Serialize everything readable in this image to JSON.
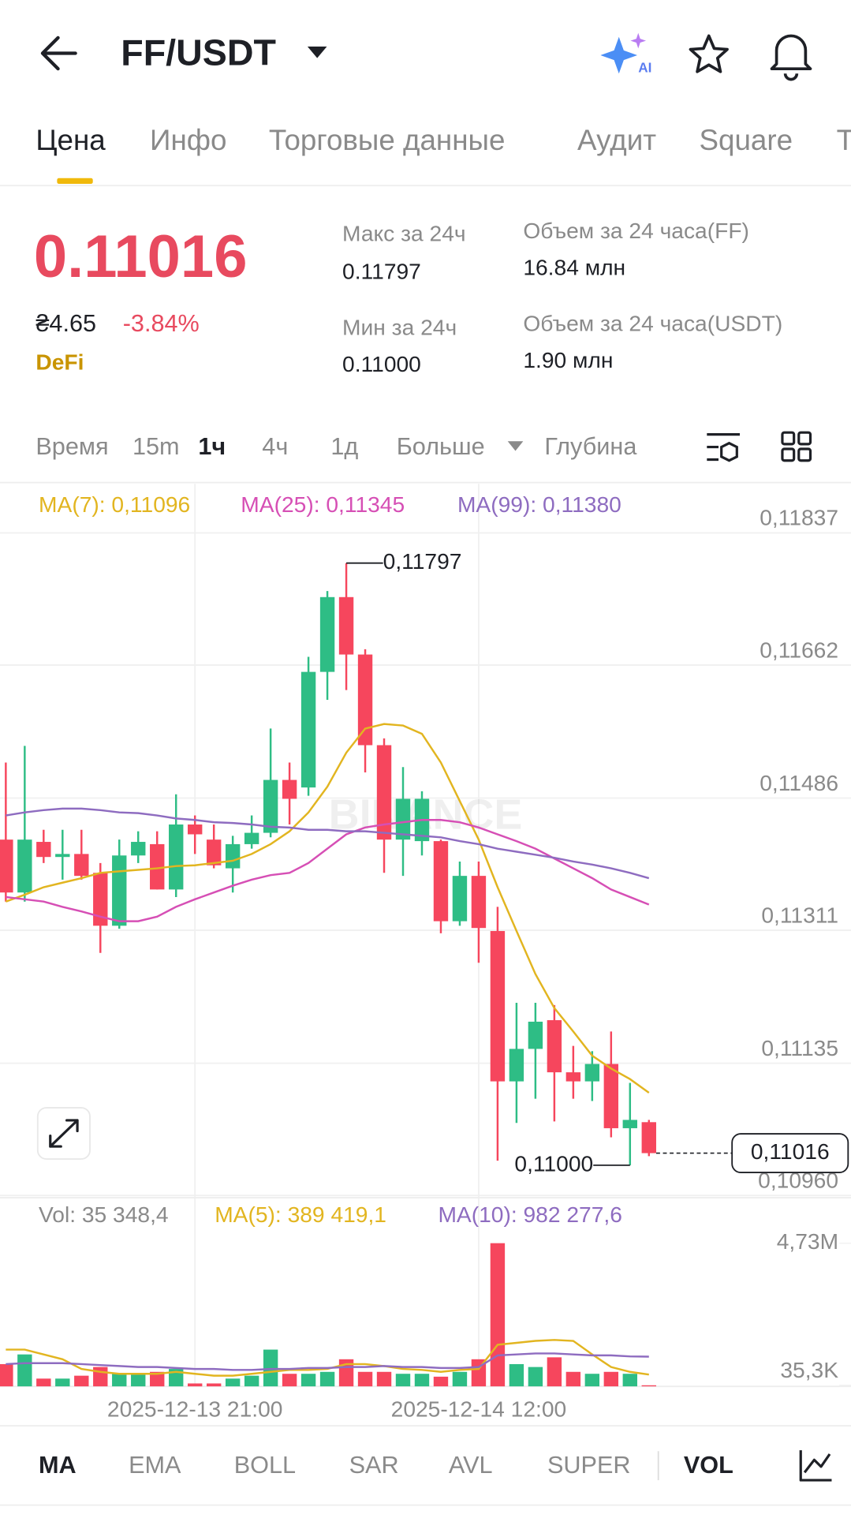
{
  "header": {
    "title": "FF/USDT"
  },
  "tabs": [
    "Цена",
    "Инфо",
    "Торговые данные",
    "Аудит",
    "Square",
    "Т"
  ],
  "price": {
    "last": "0.11016",
    "fiat": "₴4.65",
    "change": "-3.84%",
    "tag": "DeFi"
  },
  "stats": [
    {
      "label": "Макс за 24ч",
      "value": "0.11797"
    },
    {
      "label": "Мин за 24ч",
      "value": "0.11000"
    },
    {
      "label": "Объем за 24 часа(FF)",
      "value": "16.84 млн"
    },
    {
      "label": "Объем за 24 часа(USDT)",
      "value": "1.90 млн"
    }
  ],
  "intervals": [
    "Время",
    "15m",
    "1ч",
    "4ч",
    "1д",
    "Больше",
    "Глубина"
  ],
  "indicators": [
    "MA",
    "EMA",
    "BOLL",
    "SAR",
    "AVL",
    "SUPER",
    "VOL"
  ],
  "chart_data": {
    "type": "candlestick",
    "watermark": "BINANCE",
    "categories": [
      null,
      null,
      null,
      null,
      null,
      null,
      null,
      null,
      null,
      null,
      "2025-12-13 21:00",
      null,
      null,
      null,
      null,
      null,
      null,
      null,
      null,
      null,
      null,
      null,
      null,
      null,
      null,
      "2025-12-14 12:00",
      null,
      null,
      null,
      null,
      null,
      null,
      null,
      null,
      null
    ],
    "open": [
      0.11431,
      0.11361,
      0.11428,
      0.11408,
      0.11412,
      0.11387,
      0.11317,
      0.1141,
      0.11425,
      0.11365,
      0.11451,
      0.11431,
      0.11393,
      0.11425,
      0.1144,
      0.1151,
      0.115,
      0.11653,
      0.11752,
      0.11676,
      0.11556,
      0.11431,
      0.11429,
      0.11429,
      0.11323,
      0.11383,
      0.1131,
      0.11111,
      0.11154,
      0.11192,
      0.11123,
      0.11111,
      0.11134,
      0.11049,
      0.11057
    ],
    "high": [
      0.11533,
      0.11555,
      0.11444,
      0.11444,
      0.11444,
      0.114,
      0.11431,
      0.11442,
      0.11442,
      0.11491,
      0.11463,
      0.11451,
      0.11436,
      0.11463,
      0.11578,
      0.11533,
      0.11673,
      0.1176,
      0.11797,
      0.11683,
      0.11565,
      0.11527,
      0.11495,
      0.11431,
      0.11402,
      0.11402,
      0.11342,
      0.11215,
      0.11215,
      0.11212,
      0.11158,
      0.11151,
      0.11177,
      0.11109,
      0.1106
    ],
    "low": [
      0.11349,
      0.11349,
      0.114,
      0.11378,
      0.11378,
      0.11281,
      0.11313,
      0.114,
      0.11365,
      0.11355,
      0.11412,
      0.11393,
      0.11361,
      0.11419,
      0.11434,
      0.11451,
      0.11489,
      0.11616,
      0.11629,
      0.1152,
      0.11387,
      0.11383,
      0.1141,
      0.11307,
      0.11317,
      0.11268,
      0.11006,
      0.11056,
      0.11088,
      0.11058,
      0.11088,
      0.11085,
      0.11037,
      0.11,
      0.11012
    ],
    "close": [
      0.11361,
      0.11431,
      0.11408,
      0.11412,
      0.11383,
      0.11317,
      0.1141,
      0.11428,
      0.11365,
      0.11451,
      0.11438,
      0.11397,
      0.11425,
      0.1144,
      0.1151,
      0.11485,
      0.11653,
      0.11752,
      0.11676,
      0.11556,
      0.11431,
      0.11485,
      0.11485,
      0.11323,
      0.11383,
      0.11314,
      0.11111,
      0.11154,
      0.1119,
      0.11123,
      0.11111,
      0.11134,
      0.11049,
      0.1106,
      0.11016
    ],
    "up_color": "#2ebd85",
    "down_color": "#f6465d",
    "lines": [
      {
        "name": "MA(7): 0,11096",
        "color": "#e2b520",
        "values": [
          0.11349,
          0.11358,
          0.11368,
          0.11374,
          0.1138,
          0.11387,
          0.11389,
          0.11391,
          0.11393,
          0.11396,
          0.11397,
          0.114,
          0.11403,
          0.11412,
          0.11425,
          0.11442,
          0.11467,
          0.11501,
          0.11546,
          0.11578,
          0.11584,
          0.11582,
          0.11571,
          0.11533,
          0.11482,
          0.11431,
          0.11368,
          0.1131,
          0.11253,
          0.11208,
          0.11177,
          0.11145,
          0.11128,
          0.11114,
          0.11096
        ]
      },
      {
        "name": "MA(25): 0,11345",
        "color": "#d64fb5",
        "values": [
          0.11355,
          0.11352,
          0.11349,
          0.11342,
          0.11336,
          0.11329,
          0.11323,
          0.11323,
          0.11329,
          0.11342,
          0.11352,
          0.11361,
          0.1137,
          0.11378,
          0.11384,
          0.11387,
          0.114,
          0.11419,
          0.11438,
          0.11447,
          0.11451,
          0.11454,
          0.11457,
          0.11457,
          0.11454,
          0.11447,
          0.11438,
          0.11429,
          0.11419,
          0.11406,
          0.11393,
          0.1138,
          0.11365,
          0.11355,
          0.11345
        ]
      },
      {
        "name": "MA(99): 0,11380",
        "color": "#8e6cc0",
        "values": [
          0.11463,
          0.11467,
          0.1147,
          0.11472,
          0.11472,
          0.1147,
          0.11467,
          0.11466,
          0.11463,
          0.11459,
          0.11457,
          0.11454,
          0.11453,
          0.11451,
          0.11448,
          0.11447,
          0.11444,
          0.11444,
          0.11442,
          0.11442,
          0.1144,
          0.11438,
          0.11436,
          0.11434,
          0.11429,
          0.11425,
          0.11419,
          0.11415,
          0.11411,
          0.11407,
          0.11402,
          0.11398,
          0.11393,
          0.11387,
          0.1138
        ]
      }
    ],
    "ylim": [
      0.10957,
      0.11902
    ],
    "yticks": [
      {
        "value": 0.11837,
        "label": "0,11837"
      },
      {
        "value": 0.11662,
        "label": "0,11662"
      },
      {
        "value": 0.11486,
        "label": "0,11486"
      },
      {
        "value": 0.11311,
        "label": "0,11311"
      },
      {
        "value": 0.11135,
        "label": "0,11135"
      },
      {
        "value": 0.1096,
        "label": "0,10960"
      }
    ],
    "annotations": {
      "high": "0,11797",
      "low": "0,11000",
      "last": "0,11016"
    },
    "volume": {
      "legend": "Vol: 35 348,4",
      "values": [
        735000,
        1055000,
        256000,
        256000,
        352000,
        639000,
        415000,
        415000,
        479000,
        575000,
        96000,
        96000,
        256000,
        352000,
        1214000,
        415000,
        415000,
        479000,
        895000,
        479000,
        479000,
        415000,
        415000,
        320000,
        479000,
        895000,
        4730000,
        735000,
        639000,
        959000,
        479000,
        415000,
        479000,
        415000,
        35348
      ],
      "lines": [
        {
          "name": "MA(5): 389 419,1",
          "color": "#e2b520",
          "values": [
            1214000,
            1214000,
            1055000,
            895000,
            575000,
            479000,
            415000,
            415000,
            415000,
            479000,
            415000,
            352000,
            352000,
            415000,
            479000,
            543000,
            543000,
            575000,
            735000,
            735000,
            671000,
            575000,
            543000,
            479000,
            543000,
            575000,
            1374000,
            1438000,
            1502000,
            1534000,
            1502000,
            1055000,
            639000,
            479000,
            389419
          ]
        },
        {
          "name": "MA(10): 982 277,6",
          "color": "#8e6cc0",
          "values": [
            735000,
            767000,
            767000,
            767000,
            735000,
            703000,
            671000,
            639000,
            639000,
            607000,
            575000,
            575000,
            543000,
            543000,
            575000,
            575000,
            607000,
            607000,
            639000,
            639000,
            671000,
            639000,
            639000,
            607000,
            607000,
            639000,
            1023000,
            1055000,
            1087000,
            1087000,
            1055000,
            1023000,
            1023000,
            990000,
            982277
          ]
        }
      ],
      "ylim": [
        0,
        6168000
      ],
      "yticks": [
        {
          "value": 4730000,
          "label": "4,73M"
        },
        {
          "value": 35300,
          "label": "35,3K"
        }
      ]
    }
  }
}
